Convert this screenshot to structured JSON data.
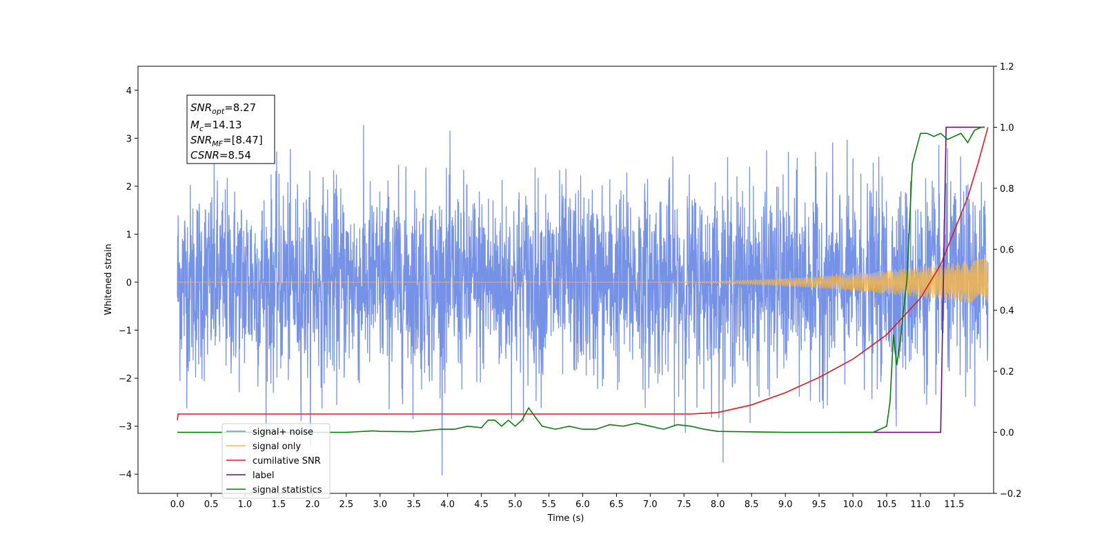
{
  "chart_data": {
    "type": "line",
    "xlabel": "Time (s)",
    "ylabel": "Whitened strain",
    "xlim": [
      -0.5833,
      12.0833
    ],
    "ylim": [
      -4.4,
      4.5
    ],
    "y2lim": [
      -0.2,
      1.2
    ],
    "x_ticks": [
      "0.0",
      "0.5",
      "1.0",
      "1.5",
      "2.0",
      "2.5",
      "3.0",
      "3.5",
      "4.0",
      "4.5",
      "5.0",
      "5.5",
      "6.0",
      "6.5",
      "7.0",
      "7.5",
      "8.0",
      "8.5",
      "9.0",
      "9.5",
      "10.0",
      "10.5",
      "11.0",
      "11.5"
    ],
    "y_ticks": [
      "−4",
      "−3",
      "−2",
      "−1",
      "0",
      "1",
      "2",
      "3",
      "4"
    ],
    "y2_ticks": [
      "−0.2",
      "0.0",
      "0.2",
      "0.4",
      "0.6",
      "0.8",
      "1.0",
      "1.2"
    ],
    "grid": false,
    "legend_position": "lower-left",
    "annotation": {
      "snr_opt": "=8.27",
      "mc": "=14.13",
      "snr_mf": "=[8.47]",
      "csnr": "=8.54",
      "labels": {
        "snr": "SNR",
        "opt": "opt",
        "m": "M",
        "c": "c",
        "mf": "MF",
        "csnr": "CSNR"
      }
    },
    "series": [
      {
        "name": "signal+ noise",
        "color": "#6f8ce6",
        "axis": "left",
        "envelope": {
          "x_start": 0.0,
          "x_end": 12.0,
          "std": 1.0,
          "spike_max": 4.1
        }
      },
      {
        "name": "signal only",
        "color": "#f5b74e",
        "axis": "left",
        "chirp": {
          "x_start": 0.0,
          "x_end": 12.0,
          "amp_start": 0.01,
          "amp_end": 0.5,
          "visible_from": 7.4
        }
      },
      {
        "name": "cumilative SNR",
        "color": "#e8151b",
        "axis": "right",
        "points": [
          [
            0.0,
            0.04
          ],
          [
            0.01,
            0.06
          ],
          [
            7.6,
            0.06
          ],
          [
            8.0,
            0.065
          ],
          [
            8.5,
            0.09
          ],
          [
            9.0,
            0.13
          ],
          [
            9.5,
            0.18
          ],
          [
            10.0,
            0.24
          ],
          [
            10.5,
            0.32
          ],
          [
            11.0,
            0.44
          ],
          [
            11.3,
            0.55
          ],
          [
            11.5,
            0.66
          ],
          [
            11.7,
            0.77
          ],
          [
            11.85,
            0.88
          ],
          [
            12.0,
            1.0
          ]
        ]
      },
      {
        "name": "label",
        "color": "#6a0d80",
        "axis": "right",
        "points": [
          [
            9.8,
            0.0
          ],
          [
            11.3,
            0.0
          ],
          [
            11.38,
            1.0
          ],
          [
            11.95,
            1.0
          ]
        ]
      },
      {
        "name": "signal statistics",
        "color": "#0a7a0a",
        "axis": "right",
        "points": [
          [
            0.0,
            0.0
          ],
          [
            2.5,
            0.0
          ],
          [
            2.9,
            0.005
          ],
          [
            3.0,
            0.003
          ],
          [
            3.5,
            0.002
          ],
          [
            3.9,
            0.01
          ],
          [
            4.1,
            0.01
          ],
          [
            4.3,
            0.02
          ],
          [
            4.5,
            0.015
          ],
          [
            4.6,
            0.04
          ],
          [
            4.7,
            0.04
          ],
          [
            4.8,
            0.02
          ],
          [
            4.9,
            0.04
          ],
          [
            5.0,
            0.02
          ],
          [
            5.1,
            0.04
          ],
          [
            5.2,
            0.08
          ],
          [
            5.3,
            0.05
          ],
          [
            5.4,
            0.02
          ],
          [
            5.6,
            0.01
          ],
          [
            5.8,
            0.02
          ],
          [
            6.0,
            0.01
          ],
          [
            6.2,
            0.01
          ],
          [
            6.4,
            0.025
          ],
          [
            6.6,
            0.02
          ],
          [
            6.8,
            0.03
          ],
          [
            7.0,
            0.02
          ],
          [
            7.2,
            0.01
          ],
          [
            7.4,
            0.025
          ],
          [
            7.6,
            0.02
          ],
          [
            7.8,
            0.01
          ],
          [
            8.0,
            0.003
          ],
          [
            9.0,
            0.0
          ],
          [
            10.0,
            0.0
          ],
          [
            10.3,
            0.0
          ],
          [
            10.5,
            0.02
          ],
          [
            10.55,
            0.1
          ],
          [
            10.6,
            0.32
          ],
          [
            10.65,
            0.22
          ],
          [
            10.7,
            0.3
          ],
          [
            10.8,
            0.5
          ],
          [
            10.88,
            0.88
          ],
          [
            11.0,
            0.98
          ],
          [
            11.1,
            0.98
          ],
          [
            11.2,
            0.97
          ],
          [
            11.3,
            0.98
          ],
          [
            11.4,
            0.96
          ],
          [
            11.5,
            0.97
          ],
          [
            11.6,
            0.98
          ],
          [
            11.7,
            0.95
          ],
          [
            11.8,
            0.99
          ],
          [
            11.9,
            1.0
          ],
          [
            11.95,
            1.0
          ]
        ]
      }
    ]
  }
}
